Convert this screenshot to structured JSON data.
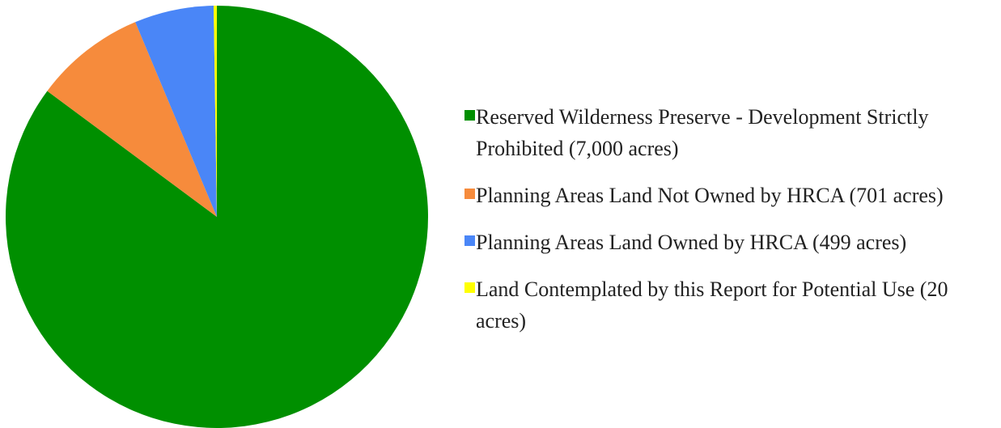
{
  "chart_data": {
    "type": "pie",
    "series": [
      {
        "name": "Reserved Wilderness Preserve - Development Strictly Prohibited (7,000 acres)",
        "color": "#008f00",
        "values": [
          7000
        ]
      },
      {
        "name": "Planning Areas Land Not Owned by HRCA (701 acres)",
        "color": "#f68b3c",
        "values": [
          701
        ]
      },
      {
        "name": "Planning Areas Land Owned by HRCA (499 acres)",
        "color": "#4a86f7",
        "values": [
          499
        ]
      },
      {
        "name": "Land Contemplated by this Report for Potential Use (20 acres)",
        "color": "#ffff00",
        "values": [
          20
        ]
      }
    ]
  }
}
